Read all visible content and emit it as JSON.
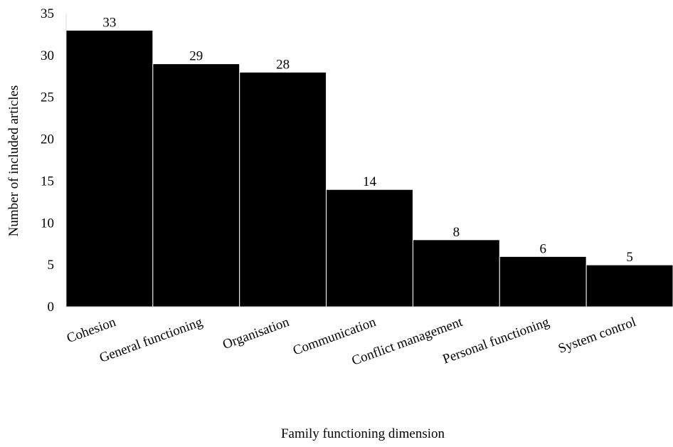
{
  "chart_data": {
    "type": "bar",
    "categories": [
      "Cohesion",
      "General functioning",
      "Organisation",
      "Communication",
      "Conflict management",
      "Personal functioning",
      "System control"
    ],
    "values": [
      33,
      29,
      28,
      14,
      8,
      6,
      5
    ],
    "data_labels": [
      "33",
      "29",
      "28",
      "14",
      "8",
      "6",
      "5"
    ],
    "xlabel": "Family functioning dimension",
    "ylabel": "Number of included articles",
    "ylim": [
      0,
      35
    ],
    "yticks": [
      0,
      5,
      10,
      15,
      20,
      25,
      30,
      35
    ],
    "grid": false,
    "legend": "none",
    "bar_color": "#000000",
    "bar_edge_color": "#ffffff"
  }
}
